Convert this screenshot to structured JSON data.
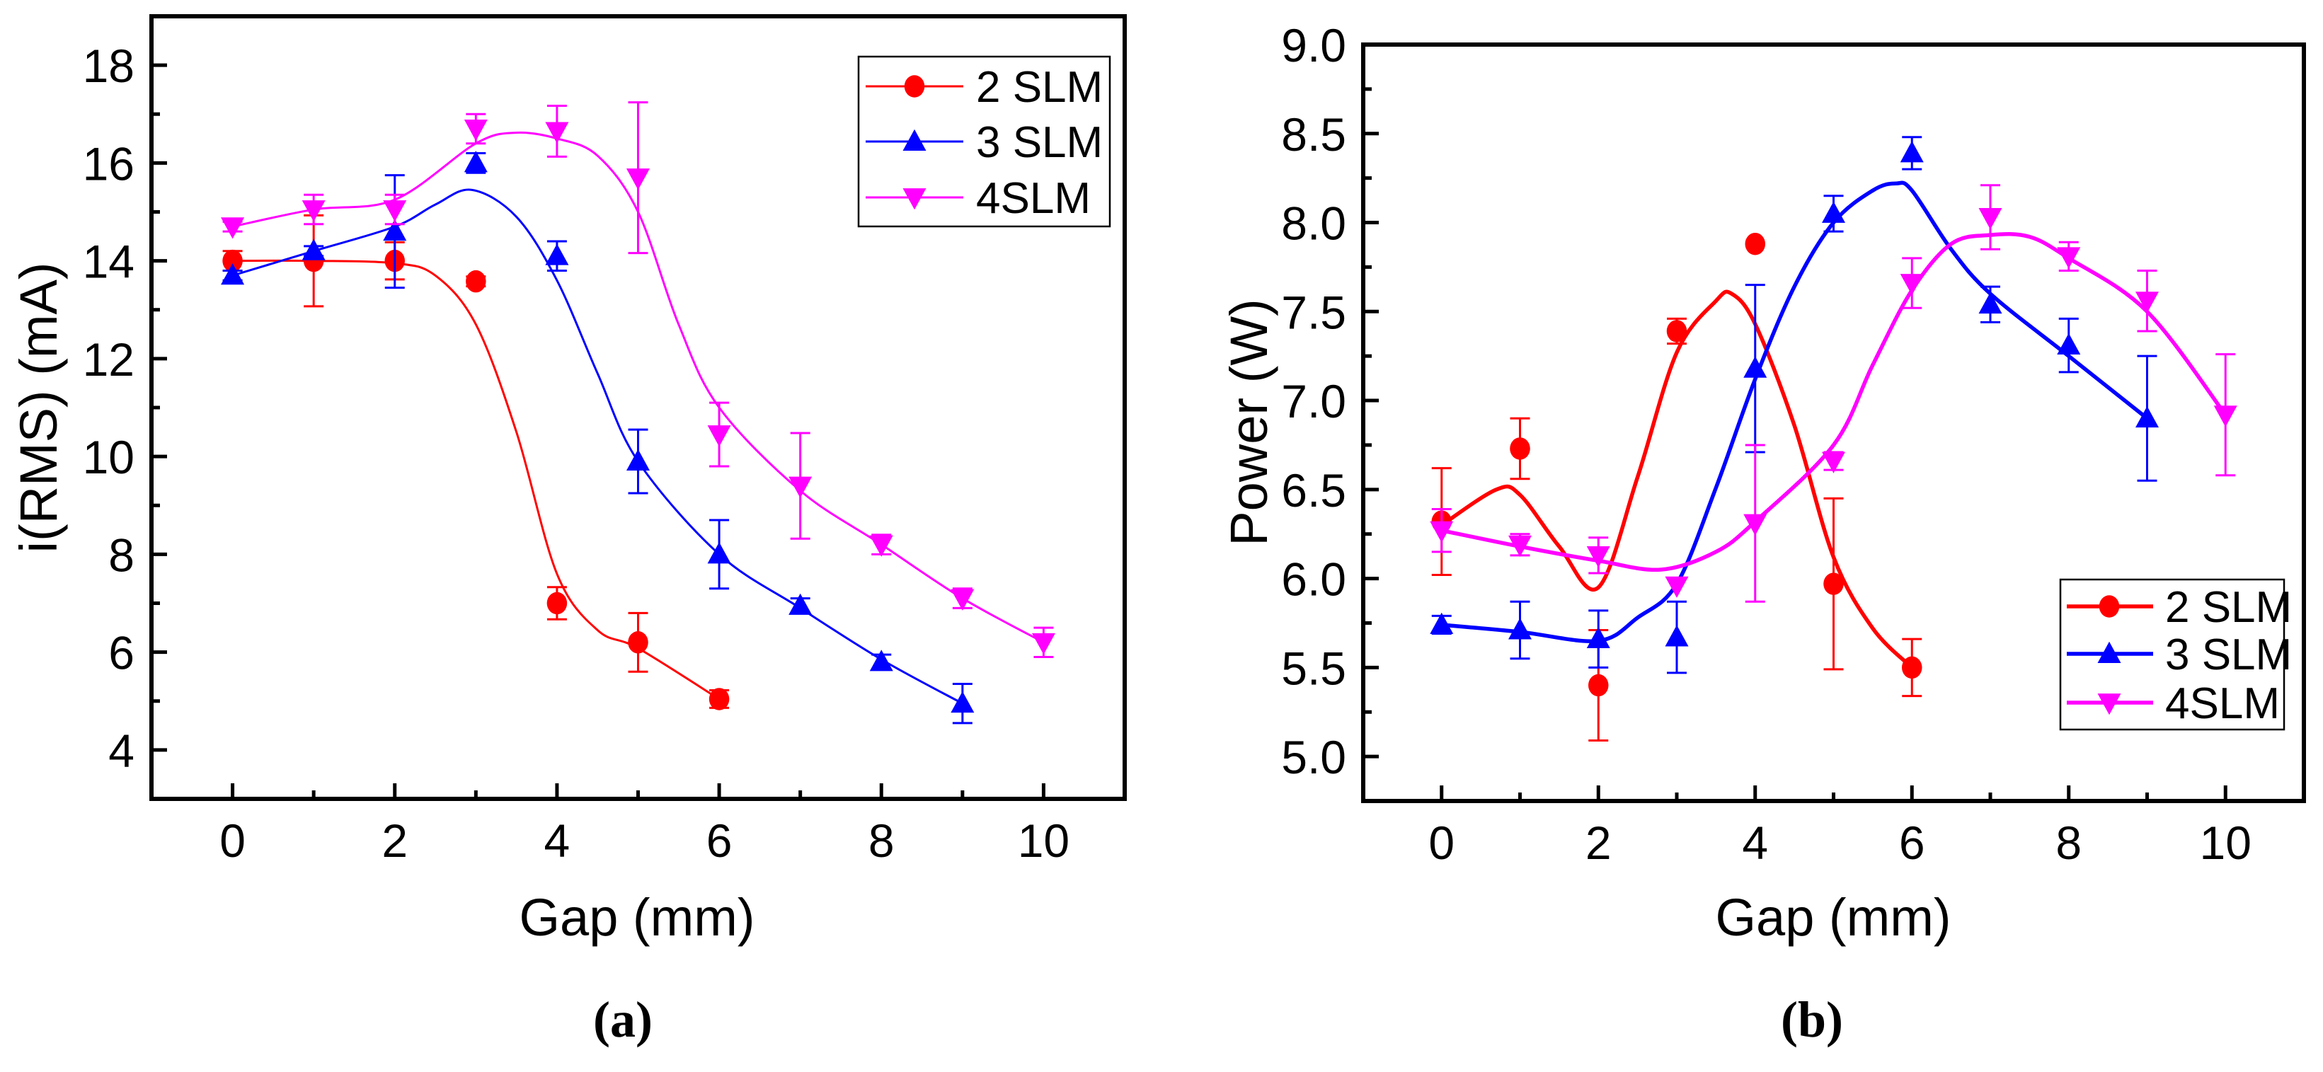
{
  "chart_data": [
    {
      "type": "line",
      "panel_label": "(a)",
      "xlabel": "Gap (mm)",
      "ylabel": "i(RMS) (mA)",
      "xlim": [
        -1,
        11
      ],
      "ylim": [
        3,
        19
      ],
      "xticks": [
        0,
        2,
        4,
        6,
        8,
        10
      ],
      "yticks": [
        4,
        6,
        8,
        10,
        12,
        14,
        16,
        18
      ],
      "legend_position": "top-right",
      "series": [
        {
          "name": "2 SLM",
          "color": "#ff0000",
          "marker": "circle",
          "x": [
            0,
            1,
            2,
            3,
            4,
            5,
            6
          ],
          "y": [
            14.0,
            14.0,
            14.0,
            13.58,
            7.0,
            6.2,
            5.04
          ],
          "err": [
            0.2,
            0.93,
            0.38,
            0.1,
            0.33,
            0.6,
            0.18
          ],
          "fit_x": [
            0,
            1,
            2,
            2.5,
            3,
            3.5,
            4,
            4.5,
            5,
            6
          ],
          "fit_y": [
            14.0,
            14.0,
            13.95,
            13.7,
            12.7,
            10.5,
            7.6,
            6.45,
            6.08,
            5.04
          ]
        },
        {
          "name": "3 SLM",
          "color": "#0000ff",
          "marker": "triangle-up",
          "x": [
            0,
            1,
            2,
            3,
            4,
            5,
            6,
            7,
            8,
            9
          ],
          "y": [
            13.7,
            14.2,
            14.6,
            16.0,
            14.1,
            9.9,
            8.0,
            6.95,
            5.8,
            4.95
          ],
          "err": [
            0.1,
            0.1,
            1.15,
            0.2,
            0.3,
            0.65,
            0.7,
            0.15,
            0.15,
            0.4
          ],
          "fit_x": [
            0,
            1,
            2,
            2.5,
            2.95,
            3.5,
            4,
            4.5,
            5,
            6,
            7,
            8,
            9
          ],
          "fit_y": [
            13.7,
            14.2,
            14.7,
            15.15,
            15.45,
            14.9,
            13.6,
            11.7,
            9.9,
            8.0,
            6.9,
            5.85,
            4.95
          ]
        },
        {
          "name": "4SLM",
          "color": "#ff00ff",
          "marker": "triangle-down",
          "x": [
            0,
            1,
            2,
            3,
            4,
            5,
            6,
            7,
            8,
            9,
            10
          ],
          "y": [
            14.7,
            15.05,
            15.05,
            16.7,
            16.65,
            15.7,
            10.45,
            9.4,
            8.2,
            7.1,
            6.2
          ],
          "err": [
            0.1,
            0.3,
            0.3,
            0.3,
            0.52,
            1.54,
            0.65,
            1.08,
            0.2,
            0.2,
            0.3
          ],
          "fit_x": [
            0,
            1,
            2,
            3,
            3.5,
            4,
            4.5,
            5,
            5.5,
            6,
            7,
            8,
            9,
            10
          ],
          "fit_y": [
            14.7,
            15.05,
            15.25,
            16.4,
            16.62,
            16.5,
            16.15,
            15.0,
            12.7,
            11.0,
            9.3,
            8.2,
            7.1,
            6.2
          ]
        }
      ]
    },
    {
      "type": "line",
      "panel_label": "(b)",
      "xlabel": "Gap (mm)",
      "ylabel": "Power (W)",
      "xlim": [
        -1,
        11
      ],
      "ylim": [
        4.75,
        9.0
      ],
      "xticks": [
        0,
        2,
        4,
        6,
        8,
        10
      ],
      "yticks": [
        "5.0",
        "5.5",
        "6.0",
        "6.5",
        "7.0",
        "7.5",
        "8.0",
        "8.5",
        "9.0"
      ],
      "legend_position": "bottom-right",
      "series": [
        {
          "name": "2 SLM",
          "color": "#ff0000",
          "marker": "circle",
          "x": [
            0,
            1,
            2,
            3,
            4,
            5,
            6
          ],
          "y": [
            6.32,
            6.73,
            5.4,
            7.39,
            7.88,
            5.97,
            5.5
          ],
          "err": [
            0.3,
            0.17,
            0.31,
            0.07,
            0,
            0.48,
            0.16
          ],
          "fit_x": [
            0,
            0.7,
            1,
            1.5,
            2,
            2.5,
            3,
            3.5,
            3.7,
            4,
            4.5,
            5,
            5.5,
            6
          ],
          "fit_y": [
            6.3,
            6.5,
            6.47,
            6.18,
            5.95,
            6.57,
            7.27,
            7.56,
            7.6,
            7.43,
            6.86,
            6.12,
            5.72,
            5.5
          ]
        },
        {
          "name": "3 SLM",
          "color": "#0000ff",
          "marker": "triangle-up",
          "x": [
            0,
            1,
            2,
            3,
            4,
            5,
            6,
            7,
            8,
            9
          ],
          "y": [
            5.74,
            5.71,
            5.66,
            5.67,
            7.18,
            8.05,
            8.39,
            7.54,
            7.31,
            6.9
          ],
          "err": [
            0.05,
            0.16,
            0.16,
            0.2,
            0.47,
            0.1,
            0.09,
            0.1,
            0.15,
            0.35
          ],
          "fit_x": [
            0,
            1,
            2,
            2.5,
            3,
            3.5,
            4,
            4.5,
            5,
            5.5,
            5.8,
            6,
            6.5,
            7,
            8,
            9
          ],
          "fit_y": [
            5.74,
            5.7,
            5.65,
            5.78,
            5.97,
            6.51,
            7.12,
            7.64,
            8.0,
            8.18,
            8.22,
            8.18,
            7.85,
            7.6,
            7.25,
            6.9
          ]
        },
        {
          "name": "4SLM",
          "color": "#ff00ff",
          "marker": "triangle-down",
          "x": [
            0,
            1,
            2,
            3,
            4,
            5,
            6,
            7,
            8,
            9,
            10
          ],
          "y": [
            6.27,
            6.19,
            6.13,
            5.96,
            6.31,
            6.66,
            7.66,
            8.03,
            7.81,
            7.56,
            6.92
          ],
          "err": [
            0.12,
            0.06,
            0.1,
            0,
            0.44,
            0.05,
            0.14,
            0.18,
            0.08,
            0.17,
            0.34
          ],
          "fit_x": [
            0,
            1,
            2,
            2.8,
            3.5,
            4,
            5,
            5.5,
            6,
            6.5,
            7,
            7.5,
            8,
            9,
            10
          ],
          "fit_y": [
            6.27,
            6.18,
            6.1,
            6.05,
            6.15,
            6.32,
            6.75,
            7.2,
            7.62,
            7.88,
            7.93,
            7.92,
            7.8,
            7.5,
            6.92
          ]
        }
      ]
    }
  ]
}
